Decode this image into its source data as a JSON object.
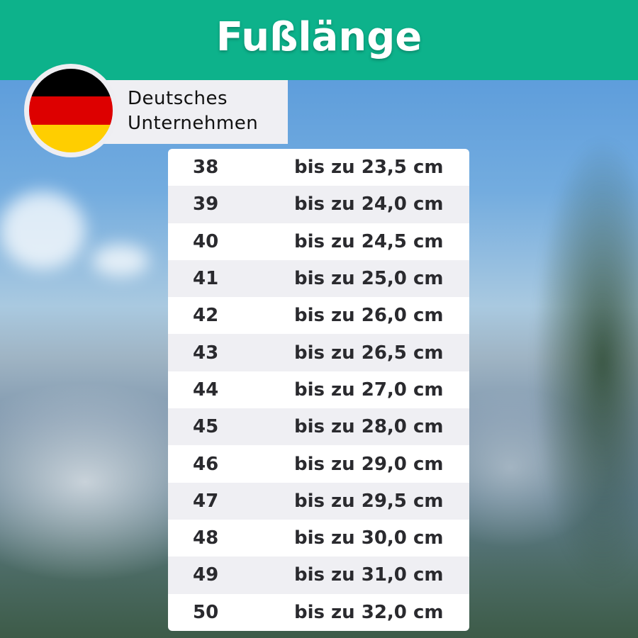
{
  "title": "Fußlänge",
  "badge": {
    "line1": "Deutsches",
    "line2": "Unternehmen",
    "flag_colors": [
      "#000000",
      "#dd0000",
      "#ffce00"
    ]
  },
  "colors": {
    "header": "#0db28b",
    "row_alt": "#efeff3"
  },
  "table": {
    "rows": [
      {
        "size": "38",
        "length": "bis zu 23,5 cm"
      },
      {
        "size": "39",
        "length": "bis zu 24,0 cm"
      },
      {
        "size": "40",
        "length": "bis zu 24,5 cm"
      },
      {
        "size": "41",
        "length": "bis zu 25,0 cm"
      },
      {
        "size": "42",
        "length": "bis zu 26,0 cm"
      },
      {
        "size": "43",
        "length": "bis zu 26,5 cm"
      },
      {
        "size": "44",
        "length": "bis zu 27,0 cm"
      },
      {
        "size": "45",
        "length": "bis zu 28,0 cm"
      },
      {
        "size": "46",
        "length": "bis zu 29,0 cm"
      },
      {
        "size": "47",
        "length": "bis zu 29,5 cm"
      },
      {
        "size": "48",
        "length": "bis zu 30,0 cm"
      },
      {
        "size": "49",
        "length": "bis zu 31,0 cm"
      },
      {
        "size": "50",
        "length": "bis zu 32,0 cm"
      }
    ]
  }
}
